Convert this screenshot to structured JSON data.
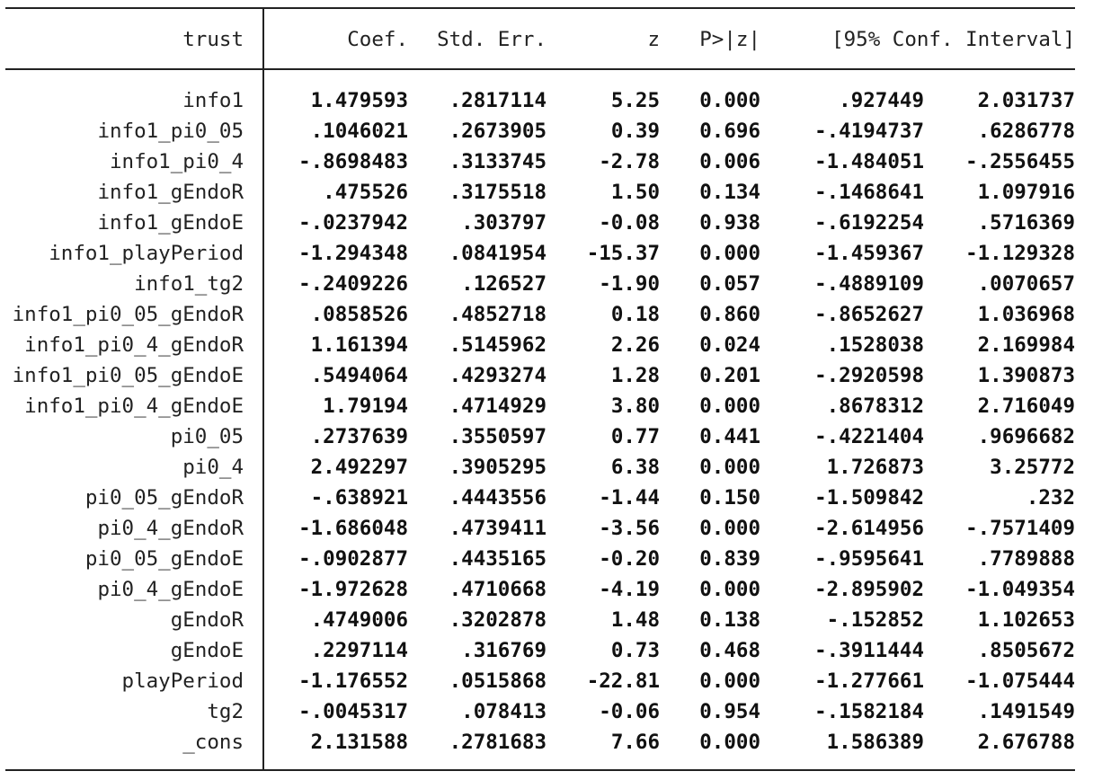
{
  "headers": {
    "depvar": "trust",
    "coef": "Coef.",
    "stderr": "Std. Err.",
    "z": "z",
    "pvalue": "P>|z|",
    "ci": "[95% Conf. Interval]"
  },
  "rows": [
    {
      "name": "info1",
      "coef": "1.479593",
      "se": ".2817114",
      "z": "5.25",
      "p": "0.000",
      "lo": ".927449",
      "hi": "2.031737"
    },
    {
      "name": "info1_pi0_05",
      "coef": ".1046021",
      "se": ".2673905",
      "z": "0.39",
      "p": "0.696",
      "lo": "-.4194737",
      "hi": ".6286778"
    },
    {
      "name": "info1_pi0_4",
      "coef": "-.8698483",
      "se": ".3133745",
      "z": "-2.78",
      "p": "0.006",
      "lo": "-1.484051",
      "hi": "-.2556455"
    },
    {
      "name": "info1_gEndoR",
      "coef": ".475526",
      "se": ".3175518",
      "z": "1.50",
      "p": "0.134",
      "lo": "-.1468641",
      "hi": "1.097916"
    },
    {
      "name": "info1_gEndoE",
      "coef": "-.0237942",
      "se": ".303797",
      "z": "-0.08",
      "p": "0.938",
      "lo": "-.6192254",
      "hi": ".5716369"
    },
    {
      "name": "info1_playPeriod",
      "coef": "-1.294348",
      "se": ".0841954",
      "z": "-15.37",
      "p": "0.000",
      "lo": "-1.459367",
      "hi": "-1.129328"
    },
    {
      "name": "info1_tg2",
      "coef": "-.2409226",
      "se": ".126527",
      "z": "-1.90",
      "p": "0.057",
      "lo": "-.4889109",
      "hi": ".0070657"
    },
    {
      "name": "info1_pi0_05_gEndoR",
      "coef": ".0858526",
      "se": ".4852718",
      "z": "0.18",
      "p": "0.860",
      "lo": "-.8652627",
      "hi": "1.036968"
    },
    {
      "name": "info1_pi0_4_gEndoR",
      "coef": "1.161394",
      "se": ".5145962",
      "z": "2.26",
      "p": "0.024",
      "lo": ".1528038",
      "hi": "2.169984"
    },
    {
      "name": "info1_pi0_05_gEndoE",
      "coef": ".5494064",
      "se": ".4293274",
      "z": "1.28",
      "p": "0.201",
      "lo": "-.2920598",
      "hi": "1.390873"
    },
    {
      "name": "info1_pi0_4_gEndoE",
      "coef": "1.79194",
      "se": ".4714929",
      "z": "3.80",
      "p": "0.000",
      "lo": ".8678312",
      "hi": "2.716049"
    },
    {
      "name": "pi0_05",
      "coef": ".2737639",
      "se": ".3550597",
      "z": "0.77",
      "p": "0.441",
      "lo": "-.4221404",
      "hi": ".9696682"
    },
    {
      "name": "pi0_4",
      "coef": "2.492297",
      "se": ".3905295",
      "z": "6.38",
      "p": "0.000",
      "lo": "1.726873",
      "hi": "3.25772"
    },
    {
      "name": "pi0_05_gEndoR",
      "coef": "-.638921",
      "se": ".4443556",
      "z": "-1.44",
      "p": "0.150",
      "lo": "-1.509842",
      "hi": ".232"
    },
    {
      "name": "pi0_4_gEndoR",
      "coef": "-1.686048",
      "se": ".4739411",
      "z": "-3.56",
      "p": "0.000",
      "lo": "-2.614956",
      "hi": "-.7571409"
    },
    {
      "name": "pi0_05_gEndoE",
      "coef": "-.0902877",
      "se": ".4435165",
      "z": "-0.20",
      "p": "0.839",
      "lo": "-.9595641",
      "hi": ".7789888"
    },
    {
      "name": "pi0_4_gEndoE",
      "coef": "-1.972628",
      "se": ".4710668",
      "z": "-4.19",
      "p": "0.000",
      "lo": "-2.895902",
      "hi": "-1.049354"
    },
    {
      "name": "gEndoR",
      "coef": ".4749006",
      "se": ".3202878",
      "z": "1.48",
      "p": "0.138",
      "lo": "-.152852",
      "hi": "1.102653"
    },
    {
      "name": "gEndoE",
      "coef": ".2297114",
      "se": ".316769",
      "z": "0.73",
      "p": "0.468",
      "lo": "-.3911444",
      "hi": ".8505672"
    },
    {
      "name": "playPeriod",
      "coef": "-1.176552",
      "se": ".0515868",
      "z": "-22.81",
      "p": "0.000",
      "lo": "-1.277661",
      "hi": "-1.075444"
    },
    {
      "name": "tg2",
      "coef": "-.0045317",
      "se": ".078413",
      "z": "-0.06",
      "p": "0.954",
      "lo": "-.1582184",
      "hi": ".1491549"
    },
    {
      "name": "_cons",
      "coef": "2.131588",
      "se": ".2781683",
      "z": "7.66",
      "p": "0.000",
      "lo": "1.586389",
      "hi": "2.676788"
    }
  ]
}
